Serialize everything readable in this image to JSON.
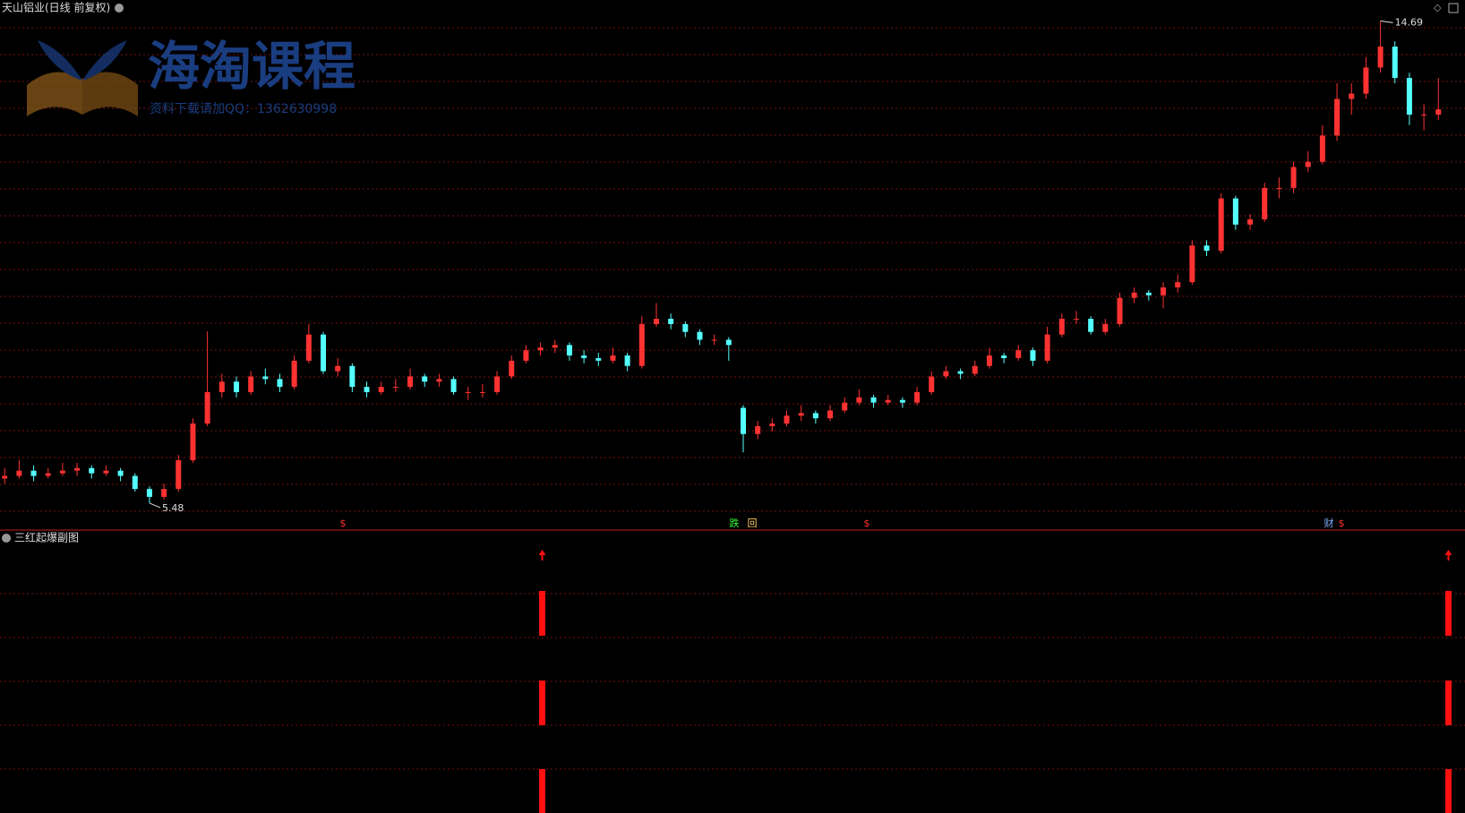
{
  "chart_data": {
    "type": "candlestick",
    "title": "天山铝业(日线 前复权)",
    "watermark": "海淘课程",
    "watermark_note": "资料下载请加QQ：1362630998",
    "up_color": "#ff3232",
    "down_color": "#54ffff",
    "ylim": [
      5.0,
      14.85
    ],
    "candles": [
      [
        5.95,
        6.15,
        5.85,
        6.0
      ],
      [
        6.0,
        6.3,
        5.95,
        6.1
      ],
      [
        6.1,
        6.2,
        5.9,
        6.0
      ],
      [
        6.0,
        6.15,
        5.95,
        6.05
      ],
      [
        6.05,
        6.25,
        6.0,
        6.1
      ],
      [
        6.1,
        6.25,
        6.0,
        6.15
      ],
      [
        6.15,
        6.2,
        5.95,
        6.05
      ],
      [
        6.05,
        6.2,
        6.0,
        6.1
      ],
      [
        6.1,
        6.15,
        5.9,
        6.0
      ],
      [
        6.0,
        6.05,
        5.7,
        5.75
      ],
      [
        5.75,
        5.8,
        5.48,
        5.6
      ],
      [
        5.6,
        5.85,
        5.55,
        5.75
      ],
      [
        5.75,
        6.4,
        5.7,
        6.3
      ],
      [
        6.3,
        7.1,
        6.25,
        7.0
      ],
      [
        7.0,
        8.76,
        6.95,
        7.6
      ],
      [
        7.6,
        7.95,
        7.5,
        7.8
      ],
      [
        7.8,
        7.9,
        7.5,
        7.6
      ],
      [
        7.6,
        8.0,
        7.55,
        7.9
      ],
      [
        7.9,
        8.05,
        7.75,
        7.85
      ],
      [
        7.85,
        7.95,
        7.6,
        7.7
      ],
      [
        7.7,
        8.3,
        7.65,
        8.2
      ],
      [
        8.2,
        8.9,
        8.15,
        8.7
      ],
      [
        8.7,
        8.75,
        7.95,
        8.0
      ],
      [
        8.0,
        8.25,
        7.9,
        8.1
      ],
      [
        8.1,
        8.15,
        7.6,
        7.7
      ],
      [
        7.7,
        7.8,
        7.5,
        7.6
      ],
      [
        7.6,
        7.8,
        7.55,
        7.7
      ],
      [
        7.7,
        7.85,
        7.6,
        7.7
      ],
      [
        7.7,
        8.05,
        7.65,
        7.9
      ],
      [
        7.9,
        7.95,
        7.7,
        7.8
      ],
      [
        7.8,
        7.95,
        7.7,
        7.85
      ],
      [
        7.85,
        7.9,
        7.55,
        7.6
      ],
      [
        7.6,
        7.7,
        7.45,
        7.6
      ],
      [
        7.6,
        7.75,
        7.5,
        7.6
      ],
      [
        7.6,
        8.0,
        7.55,
        7.9
      ],
      [
        7.9,
        8.3,
        7.85,
        8.2
      ],
      [
        8.2,
        8.5,
        8.15,
        8.4
      ],
      [
        8.4,
        8.55,
        8.3,
        8.45
      ],
      [
        8.45,
        8.6,
        8.35,
        8.5
      ],
      [
        8.5,
        8.55,
        8.2,
        8.3
      ],
      [
        8.3,
        8.4,
        8.15,
        8.25
      ],
      [
        8.25,
        8.35,
        8.1,
        8.2
      ],
      [
        8.2,
        8.45,
        8.15,
        8.3
      ],
      [
        8.3,
        8.35,
        8.0,
        8.1
      ],
      [
        8.1,
        9.05,
        8.05,
        8.9
      ],
      [
        8.9,
        9.3,
        8.85,
        9.0
      ],
      [
        9.0,
        9.1,
        8.8,
        8.9
      ],
      [
        8.9,
        8.95,
        8.65,
        8.75
      ],
      [
        8.75,
        8.8,
        8.5,
        8.6
      ],
      [
        8.6,
        8.7,
        8.5,
        8.6
      ],
      [
        8.6,
        8.65,
        8.2,
        8.5
      ],
      [
        7.3,
        7.35,
        6.45,
        6.8
      ],
      [
        6.8,
        7.05,
        6.7,
        6.95
      ],
      [
        6.95,
        7.1,
        6.85,
        7.0
      ],
      [
        7.0,
        7.25,
        6.95,
        7.15
      ],
      [
        7.15,
        7.35,
        7.05,
        7.2
      ],
      [
        7.2,
        7.25,
        7.0,
        7.1
      ],
      [
        7.1,
        7.35,
        7.05,
        7.25
      ],
      [
        7.25,
        7.5,
        7.2,
        7.4
      ],
      [
        7.4,
        7.65,
        7.35,
        7.5
      ],
      [
        7.5,
        7.55,
        7.3,
        7.4
      ],
      [
        7.4,
        7.55,
        7.35,
        7.45
      ],
      [
        7.45,
        7.5,
        7.3,
        7.4
      ],
      [
        7.4,
        7.7,
        7.35,
        7.6
      ],
      [
        7.6,
        8.0,
        7.55,
        7.9
      ],
      [
        7.9,
        8.1,
        7.85,
        8.0
      ],
      [
        8.0,
        8.05,
        7.85,
        7.95
      ],
      [
        7.95,
        8.2,
        7.9,
        8.1
      ],
      [
        8.1,
        8.45,
        8.05,
        8.3
      ],
      [
        8.3,
        8.35,
        8.15,
        8.25
      ],
      [
        8.25,
        8.5,
        8.2,
        8.4
      ],
      [
        8.4,
        8.45,
        8.1,
        8.2
      ],
      [
        8.2,
        8.85,
        8.15,
        8.7
      ],
      [
        8.7,
        9.1,
        8.65,
        9.0
      ],
      [
        9.0,
        9.15,
        8.9,
        9.0
      ],
      [
        9.0,
        9.05,
        8.7,
        8.75
      ],
      [
        8.75,
        9.0,
        8.7,
        8.9
      ],
      [
        8.9,
        9.5,
        8.85,
        9.4
      ],
      [
        9.4,
        9.6,
        9.3,
        9.5
      ],
      [
        9.5,
        9.55,
        9.35,
        9.45
      ],
      [
        9.45,
        9.7,
        9.2,
        9.6
      ],
      [
        9.6,
        9.85,
        9.5,
        9.7
      ],
      [
        9.7,
        10.5,
        9.65,
        10.4
      ],
      [
        10.4,
        10.5,
        10.2,
        10.3
      ],
      [
        10.3,
        11.4,
        10.25,
        11.3
      ],
      [
        11.3,
        11.35,
        10.7,
        10.8
      ],
      [
        10.8,
        11.0,
        10.7,
        10.9
      ],
      [
        10.9,
        11.6,
        10.85,
        11.5
      ],
      [
        11.5,
        11.7,
        11.3,
        11.5
      ],
      [
        11.5,
        12.0,
        11.4,
        11.9
      ],
      [
        11.9,
        12.2,
        11.8,
        12.0
      ],
      [
        12.0,
        12.7,
        11.95,
        12.5
      ],
      [
        12.5,
        13.5,
        12.4,
        13.2
      ],
      [
        13.2,
        13.5,
        12.9,
        13.3
      ],
      [
        13.3,
        14.0,
        13.2,
        13.8
      ],
      [
        13.8,
        14.69,
        13.7,
        14.2
      ],
      [
        14.2,
        14.3,
        13.5,
        13.6
      ],
      [
        13.6,
        13.7,
        12.7,
        12.9
      ],
      [
        12.9,
        13.1,
        12.6,
        12.9
      ],
      [
        12.9,
        13.6,
        12.8,
        13.0
      ]
    ],
    "markers": [
      "$",
      "跌",
      "回",
      "$",
      "财",
      "$"
    ],
    "sub_title": "三红起爆副图"
  }
}
